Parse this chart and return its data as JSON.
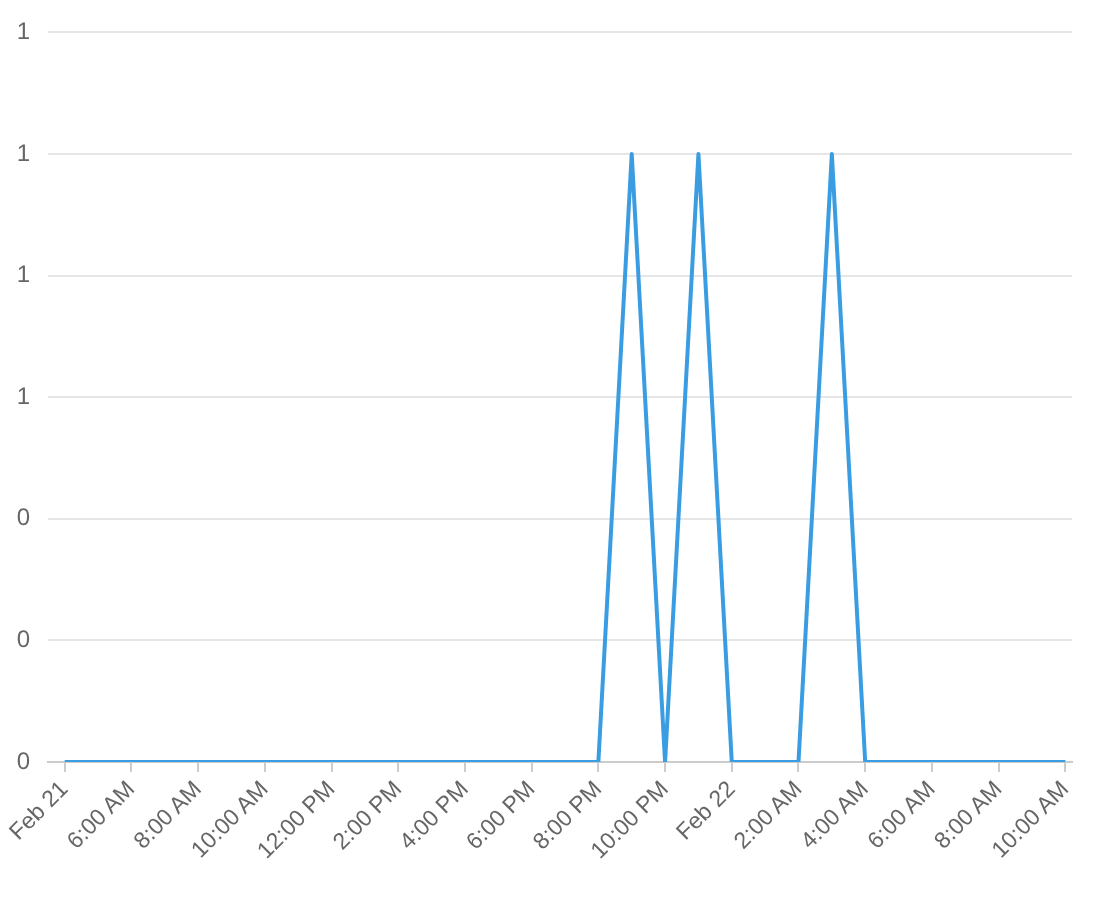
{
  "chart_data": {
    "type": "line",
    "x": [
      "--02-21T04:00",
      "--02-21T05:00",
      "--02-21T06:00",
      "--02-21T07:00",
      "--02-21T08:00",
      "--02-21T09:00",
      "--02-21T10:00",
      "--02-21T11:00",
      "--02-21T12:00",
      "--02-21T13:00",
      "--02-21T14:00",
      "--02-21T15:00",
      "--02-21T16:00",
      "--02-21T17:00",
      "--02-21T18:00",
      "--02-21T19:00",
      "--02-21T20:00",
      "--02-21T21:00",
      "--02-21T22:00",
      "--02-21T23:00",
      "--02-22T00:00",
      "--02-22T01:00",
      "--02-22T02:00",
      "--02-22T03:00",
      "--02-22T04:00",
      "--02-22T05:00",
      "--02-22T06:00",
      "--02-22T07:00",
      "--02-22T08:00",
      "--02-22T09:00",
      "--02-22T10:00"
    ],
    "series": [
      {
        "color": "#3b9de1",
        "values": [
          0,
          0,
          0,
          0,
          0,
          0,
          0,
          0,
          0,
          0,
          0,
          0,
          0,
          0,
          0,
          0,
          0,
          1,
          0,
          1,
          0,
          0,
          0,
          1,
          0,
          0,
          0,
          0,
          0,
          0,
          0
        ]
      }
    ],
    "xlim": [
      "--02-21T03:30",
      "--02-22T10:12"
    ],
    "xticks": [
      {
        "value": "--02-21T04:00",
        "label": "Feb 21"
      },
      {
        "value": "--02-21T06:00",
        "label": "6:00 AM"
      },
      {
        "value": "--02-21T08:00",
        "label": "8:00 AM"
      },
      {
        "value": "--02-21T10:00",
        "label": "10:00 AM"
      },
      {
        "value": "--02-21T12:00",
        "label": "12:00 PM"
      },
      {
        "value": "--02-21T14:00",
        "label": "2:00 PM"
      },
      {
        "value": "--02-21T16:00",
        "label": "4:00 PM"
      },
      {
        "value": "--02-21T18:00",
        "label": "6:00 PM"
      },
      {
        "value": "--02-21T20:00",
        "label": "8:00 PM"
      },
      {
        "value": "--02-21T22:00",
        "label": "10:00 PM"
      },
      {
        "value": "--02-22T00:00",
        "label": "Feb 22"
      },
      {
        "value": "--02-22T02:00",
        "label": "2:00 AM"
      },
      {
        "value": "--02-22T04:00",
        "label": "4:00 AM"
      },
      {
        "value": "--02-22T06:00",
        "label": "6:00 AM"
      },
      {
        "value": "--02-22T08:00",
        "label": "8:00 AM"
      },
      {
        "value": "--02-22T10:00",
        "label": "10:00 AM"
      }
    ],
    "ylim": [
      0,
      1.2
    ],
    "yticks": [
      {
        "value": 0,
        "label": "0"
      },
      {
        "value": 0.2,
        "label": "0"
      },
      {
        "value": 0.4,
        "label": "0"
      },
      {
        "value": 0.6,
        "label": "1"
      },
      {
        "value": 0.8,
        "label": "1"
      },
      {
        "value": 1,
        "label": "1"
      },
      {
        "value": 1.2,
        "label": "1"
      }
    ],
    "grid": "y",
    "legend": false,
    "marker": "none"
  }
}
